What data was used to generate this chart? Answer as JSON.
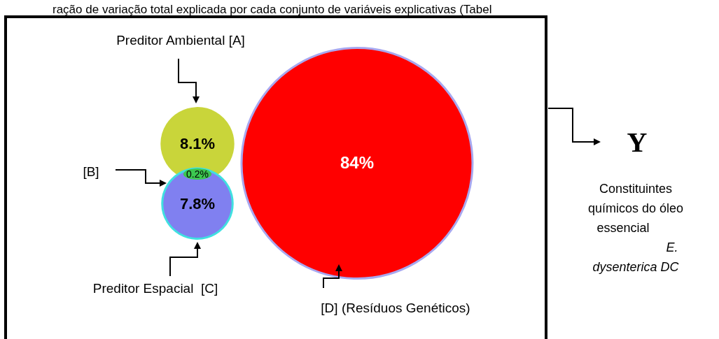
{
  "chart_data": {
    "type": "other",
    "title": "ração de variação total explicada por cada conjunto de variáveis explicativas (Tabel",
    "categories": [
      "Preditor Ambiental [A]",
      "[B]",
      "Preditor Espacial  [C]",
      "[D] (Resíduos Genéticos)"
    ],
    "values": [
      8.1,
      0.2,
      7.8,
      84
    ],
    "value_labels": [
      "8.1%",
      "0.2%",
      "7.8%",
      "84%"
    ],
    "colors": [
      "#c9d53a",
      "#3cc850",
      "#8080f0",
      "#ff0000"
    ],
    "annotations": [
      "Y",
      "Constituintes",
      "químicos do óleo",
      "essencial",
      "E.",
      "dysenterica DC"
    ]
  }
}
